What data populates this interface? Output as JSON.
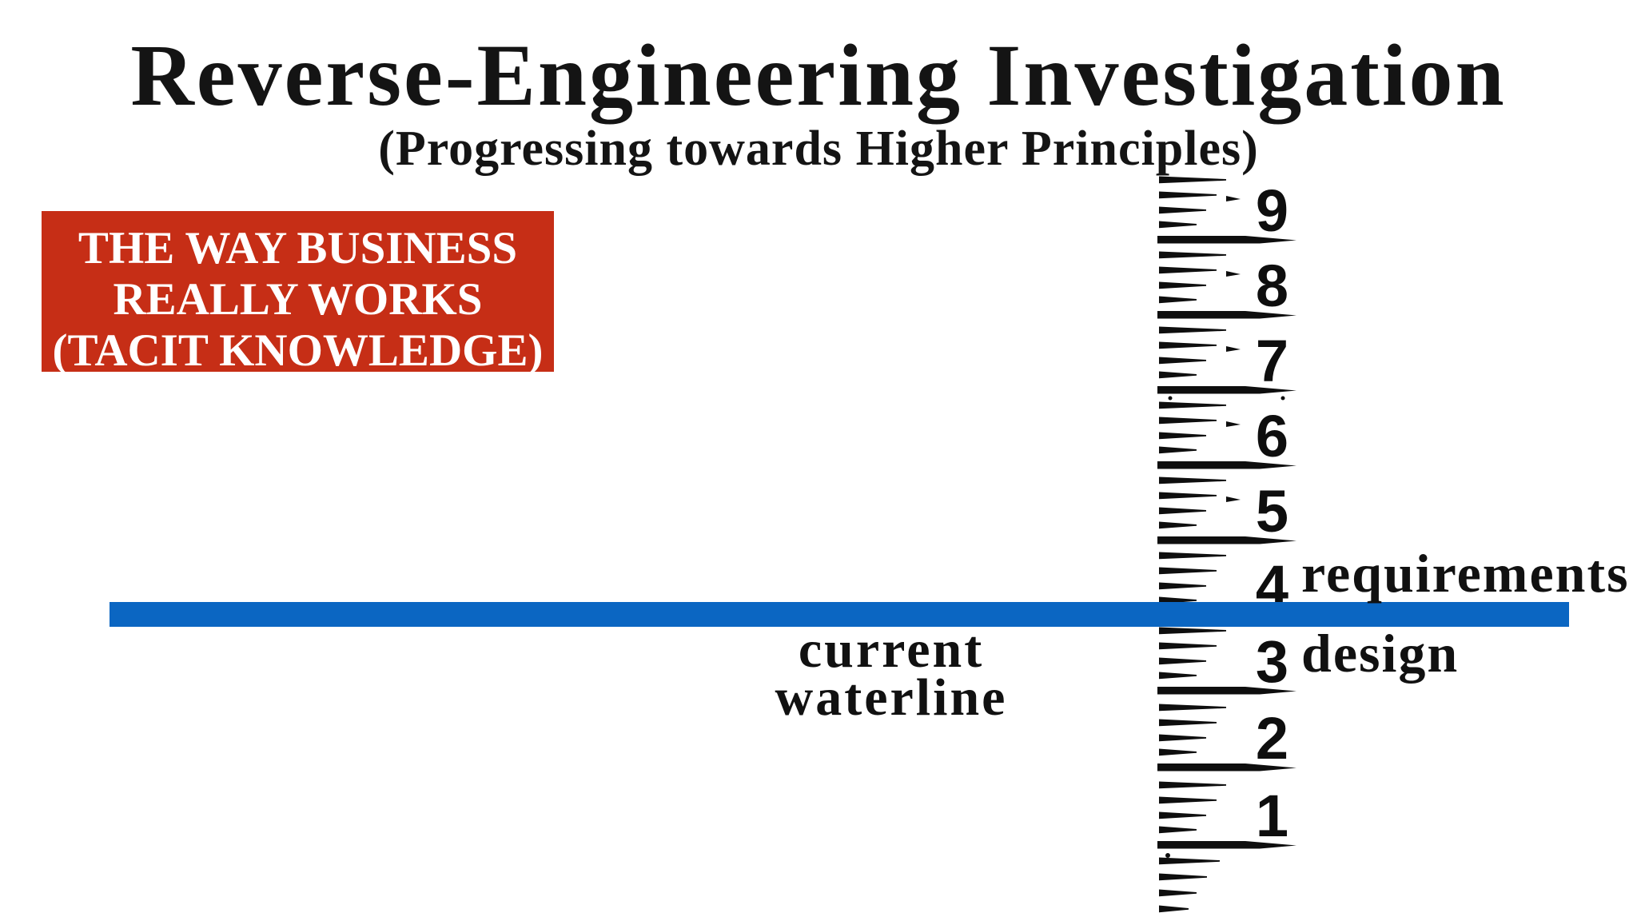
{
  "slide": {
    "title": "Reverse-Engineering Investigation",
    "subtitle": "(Progressing towards Higher Principles)",
    "background_color": "#ffffff",
    "text_color": "#141414"
  },
  "callout": {
    "lines": [
      "THE WAY BUSINESS",
      "REALLY WORKS",
      "(TACIT KNOWLEDGE)"
    ],
    "bg_color": "#c62e16",
    "text_color": "#ffffff"
  },
  "waterline": {
    "label_lines": [
      "current",
      "waterline"
    ],
    "bar_color": "#0b66c2"
  },
  "ruler": {
    "color": "#0e0e0e",
    "numbers": [
      "9",
      "8",
      "7",
      "6",
      "5",
      "4",
      "3",
      "2",
      "1"
    ],
    "annotations": [
      {
        "text": "requirements",
        "at_number": "4"
      },
      {
        "text": "design",
        "at_number": "3"
      }
    ]
  }
}
